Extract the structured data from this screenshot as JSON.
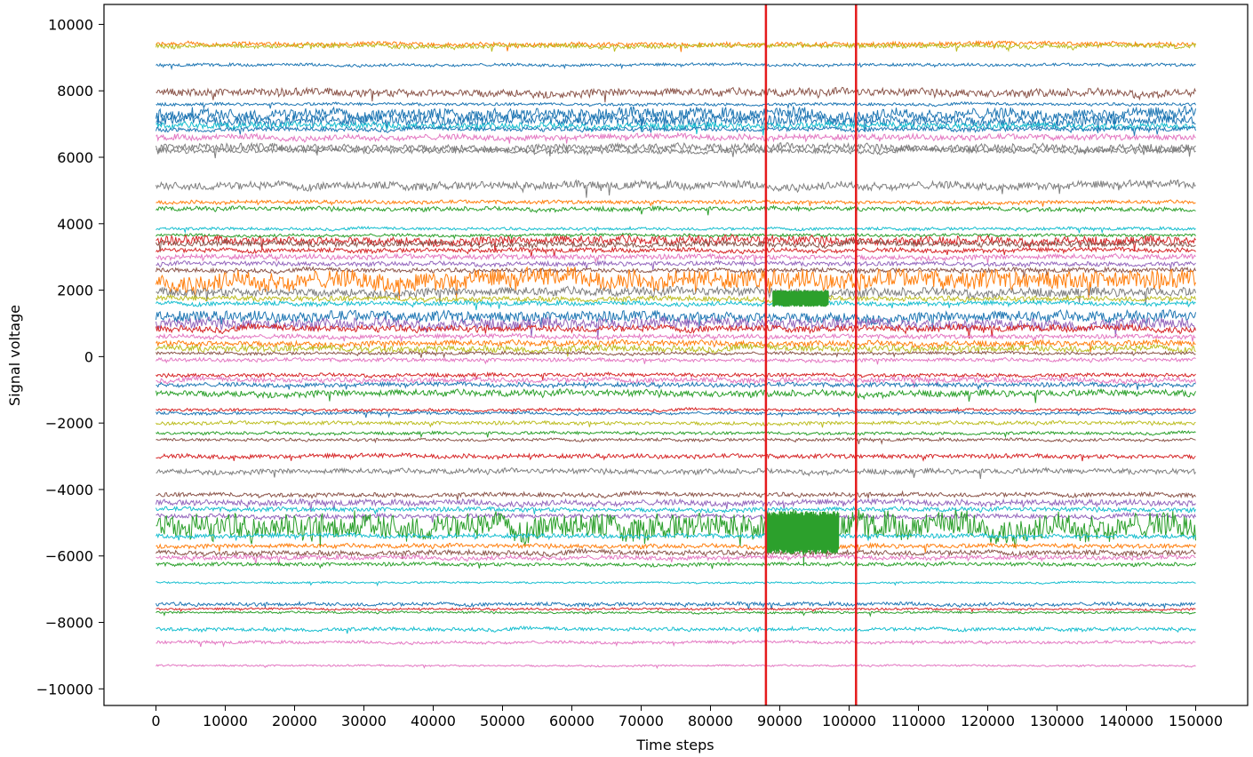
{
  "chart_data": {
    "type": "line",
    "title": "",
    "xlabel": "Time steps",
    "ylabel": "Signal voltage",
    "xlim": [
      -7500,
      157500
    ],
    "ylim": [
      -10500,
      10600
    ],
    "x_ticks": [
      0,
      10000,
      20000,
      30000,
      40000,
      50000,
      60000,
      70000,
      80000,
      90000,
      100000,
      110000,
      120000,
      130000,
      140000,
      150000
    ],
    "x_tick_labels": [
      "0",
      "10000",
      "20000",
      "30000",
      "40000",
      "50000",
      "60000",
      "70000",
      "80000",
      "90000",
      "100000",
      "110000",
      "120000",
      "130000",
      "140000",
      "150000"
    ],
    "y_ticks": [
      -10000,
      -8000,
      -6000,
      -4000,
      -2000,
      0,
      2000,
      4000,
      6000,
      8000,
      10000
    ],
    "y_tick_labels": [
      "−10000",
      "−8000",
      "−6000",
      "−4000",
      "−2000",
      "0",
      "2000",
      "4000",
      "6000",
      "8000",
      "10000"
    ],
    "x_range": [
      0,
      150000
    ],
    "grid": false,
    "legend": "none",
    "vertical_markers": [
      {
        "x": 88000,
        "color": "#e41a1c"
      },
      {
        "x": 101000,
        "color": "#e41a1c"
      }
    ],
    "channel_colors": [
      "#1f77b4",
      "#ff7f0e",
      "#2ca02c",
      "#d62728",
      "#9467bd",
      "#8c564b",
      "#e377c2",
      "#7f7f7f",
      "#bcbd22",
      "#17becf"
    ],
    "series": [
      {
        "baseline": 9400,
        "color": "#ff7f0e",
        "amplitude": 60
      },
      {
        "baseline": 9350,
        "color": "#bcbd22",
        "amplitude": 60
      },
      {
        "baseline": 8780,
        "color": "#1f77b4",
        "amplitude": 40
      },
      {
        "baseline": 7950,
        "color": "#8c564b",
        "amplitude": 110
      },
      {
        "baseline": 7600,
        "color": "#1f77b4",
        "amplitude": 40
      },
      {
        "baseline": 7300,
        "color": "#1f77b4",
        "amplitude": 160
      },
      {
        "baseline": 7100,
        "color": "#1f77b4",
        "amplitude": 140
      },
      {
        "baseline": 6950,
        "color": "#17becf",
        "amplitude": 90
      },
      {
        "baseline": 6850,
        "color": "#1f77b4",
        "amplitude": 60
      },
      {
        "baseline": 6600,
        "color": "#e377c2",
        "amplitude": 80
      },
      {
        "baseline": 6300,
        "color": "#7f7f7f",
        "amplitude": 100
      },
      {
        "baseline": 6200,
        "color": "#7f7f7f",
        "amplitude": 70
      },
      {
        "baseline": 5150,
        "color": "#7f7f7f",
        "amplitude": 110
      },
      {
        "baseline": 4650,
        "color": "#ff7f0e",
        "amplitude": 50
      },
      {
        "baseline": 4450,
        "color": "#2ca02c",
        "amplitude": 60
      },
      {
        "baseline": 3850,
        "color": "#17becf",
        "amplitude": 40
      },
      {
        "baseline": 3650,
        "color": "#2ca02c",
        "amplitude": 40
      },
      {
        "baseline": 3500,
        "color": "#d62728",
        "amplitude": 120
      },
      {
        "baseline": 3400,
        "color": "#8c564b",
        "amplitude": 80
      },
      {
        "baseline": 3200,
        "color": "#d62728",
        "amplitude": 60
      },
      {
        "baseline": 3000,
        "color": "#e377c2",
        "amplitude": 70
      },
      {
        "baseline": 2800,
        "color": "#9467bd",
        "amplitude": 60
      },
      {
        "baseline": 2600,
        "color": "#8c564b",
        "amplitude": 60
      },
      {
        "baseline": 2300,
        "color": "#ff7f0e",
        "amplitude": 260
      },
      {
        "baseline": 1950,
        "color": "#7f7f7f",
        "amplitude": 120
      },
      {
        "baseline": 1750,
        "color": "#bcbd22",
        "amplitude": 70
      },
      {
        "baseline": 1600,
        "color": "#17becf",
        "amplitude": 60
      },
      {
        "baseline": 1200,
        "color": "#1f77b4",
        "amplitude": 150
      },
      {
        "baseline": 1000,
        "color": "#9467bd",
        "amplitude": 150
      },
      {
        "baseline": 850,
        "color": "#d62728",
        "amplitude": 90
      },
      {
        "baseline": 600,
        "color": "#e377c2",
        "amplitude": 60
      },
      {
        "baseline": 400,
        "color": "#ff7f0e",
        "amplitude": 80
      },
      {
        "baseline": 250,
        "color": "#bcbd22",
        "amplitude": 90
      },
      {
        "baseline": 100,
        "color": "#8c564b",
        "amplitude": 40
      },
      {
        "baseline": -100,
        "color": "#e377c2",
        "amplitude": 50
      },
      {
        "baseline": -550,
        "color": "#d62728",
        "amplitude": 50
      },
      {
        "baseline": -700,
        "color": "#e377c2",
        "amplitude": 70
      },
      {
        "baseline": -850,
        "color": "#1f77b4",
        "amplitude": 60
      },
      {
        "baseline": -1100,
        "color": "#2ca02c",
        "amplitude": 90
      },
      {
        "baseline": -1600,
        "color": "#d62728",
        "amplitude": 40
      },
      {
        "baseline": -1700,
        "color": "#1f77b4",
        "amplitude": 40
      },
      {
        "baseline": -2000,
        "color": "#bcbd22",
        "amplitude": 50
      },
      {
        "baseline": -2300,
        "color": "#2ca02c",
        "amplitude": 40
      },
      {
        "baseline": -2500,
        "color": "#8c564b",
        "amplitude": 40
      },
      {
        "baseline": -3000,
        "color": "#d62728",
        "amplitude": 60
      },
      {
        "baseline": -3450,
        "color": "#7f7f7f",
        "amplitude": 70
      },
      {
        "baseline": -4150,
        "color": "#8c564b",
        "amplitude": 60
      },
      {
        "baseline": -4400,
        "color": "#9467bd",
        "amplitude": 80
      },
      {
        "baseline": -4600,
        "color": "#17becf",
        "amplitude": 60
      },
      {
        "baseline": -4800,
        "color": "#9467bd",
        "amplitude": 60
      },
      {
        "baseline": -5100,
        "color": "#2ca02c",
        "amplitude": 360
      },
      {
        "baseline": -5400,
        "color": "#17becf",
        "amplitude": 60
      },
      {
        "baseline": -5700,
        "color": "#ff7f0e",
        "amplitude": 60
      },
      {
        "baseline": -5900,
        "color": "#8c564b",
        "amplitude": 70
      },
      {
        "baseline": -6050,
        "color": "#e377c2",
        "amplitude": 60
      },
      {
        "baseline": -6250,
        "color": "#2ca02c",
        "amplitude": 50
      },
      {
        "baseline": -6800,
        "color": "#17becf",
        "amplitude": 25
      },
      {
        "baseline": -7450,
        "color": "#1f77b4",
        "amplitude": 50
      },
      {
        "baseline": -7600,
        "color": "#d62728",
        "amplitude": 30
      },
      {
        "baseline": -7700,
        "color": "#2ca02c",
        "amplitude": 30
      },
      {
        "baseline": -8200,
        "color": "#17becf",
        "amplitude": 50
      },
      {
        "baseline": -8600,
        "color": "#e377c2",
        "amplitude": 40
      },
      {
        "baseline": -9300,
        "color": "#e377c2",
        "amplitude": 25
      }
    ],
    "bursts": [
      {
        "baseline": -5300,
        "color": "#2ca02c",
        "x_start": 88000,
        "x_end": 98500,
        "half_height": 650
      },
      {
        "baseline": 1750,
        "color": "#2ca02c",
        "x_start": 89000,
        "x_end": 97000,
        "half_height": 250
      }
    ]
  }
}
